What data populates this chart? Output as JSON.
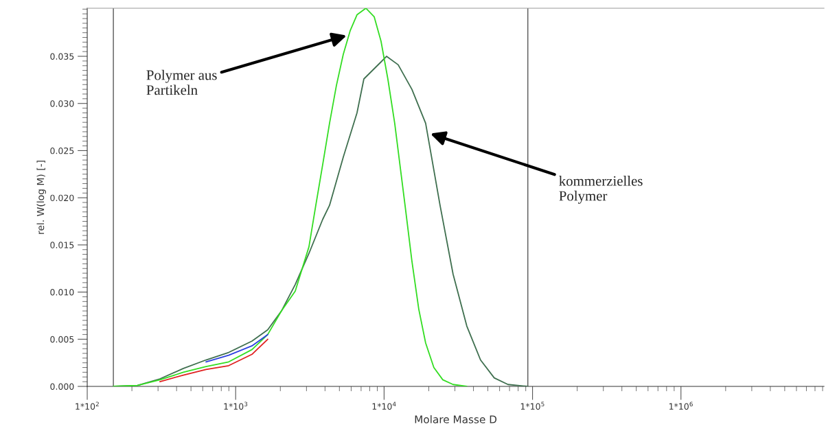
{
  "chart_data": {
    "type": "line",
    "xlabel": "Molare Masse D",
    "ylabel": "rel. W(log M) [-]",
    "log": "x",
    "grid": false,
    "legend": false,
    "marker": "none",
    "line_style": "solid",
    "xlim": [
      100,
      9200000
    ],
    "ylim": [
      0,
      0.0401
    ],
    "xticks": [
      {
        "value": 100,
        "label": "1*10$^{2}$"
      },
      {
        "value": 1000,
        "label": "1*10$^{3}$"
      },
      {
        "value": 10000,
        "label": "1*10$^{4}$"
      },
      {
        "value": 100000,
        "label": "1*10$^{5}$"
      },
      {
        "value": 1000000,
        "label": "1*10$^{6}$"
      }
    ],
    "yticks": [
      {
        "value": 0,
        "label": "0.000"
      },
      {
        "value": 0.005,
        "label": "0.005"
      },
      {
        "value": 0.01,
        "label": "0.010"
      },
      {
        "value": 0.015,
        "label": "0.015"
      },
      {
        "value": 0.02,
        "label": "0.020"
      },
      {
        "value": 0.025,
        "label": "0.025"
      },
      {
        "value": 0.03,
        "label": "0.030"
      },
      {
        "value": 0.035,
        "label": "0.035"
      }
    ],
    "ref_lines": [
      {
        "axis": "x",
        "value": 150,
        "color": "#444444"
      },
      {
        "axis": "x",
        "value": 93000,
        "color": "#444444"
      }
    ],
    "series": [
      {
        "color": "#3f6f4f",
        "x": [
          150,
          218,
          309,
          444,
          631,
          897,
          1288,
          1645,
          2035,
          2519,
          3117,
          3856,
          4290,
          5308,
          6568,
          7308,
          9533,
          10380,
          12440,
          15390,
          19050,
          23820,
          29160,
          36070,
          44640,
          55220,
          68330,
          93070
        ],
        "values": [
          0,
          0.0001,
          0.0008,
          0.0019,
          0.0028,
          0.0036,
          0.0048,
          0.006,
          0.008,
          0.0108,
          0.0141,
          0.0177,
          0.0192,
          0.0243,
          0.029,
          0.0326,
          0.0344,
          0.035,
          0.0341,
          0.0315,
          0.0279,
          0.0192,
          0.0119,
          0.0064,
          0.0028,
          0.0009,
          0.0002,
          0
        ]
      },
      {
        "color": "#33dd22",
        "x": [
          150,
          218,
          309,
          444,
          631,
          897,
          1288,
          1645,
          2035,
          2519,
          3117,
          3467,
          3856,
          4290,
          4772,
          5308,
          5904,
          6568,
          7540,
          8571,
          9533,
          10600,
          11790,
          13840,
          15390,
          17120,
          19050,
          21640,
          24860,
          29160,
          36070
        ],
        "values": [
          0,
          0.0001,
          0.0007,
          0.0015,
          0.0021,
          0.0026,
          0.0039,
          0.0055,
          0.008,
          0.0101,
          0.0148,
          0.0192,
          0.0235,
          0.0279,
          0.0319,
          0.0352,
          0.0377,
          0.0394,
          0.0401,
          0.0392,
          0.0366,
          0.0326,
          0.0279,
          0.0192,
          0.0133,
          0.0082,
          0.0046,
          0.002,
          0.0007,
          0.0002,
          0
        ]
      },
      {
        "color": "#2b3fe0",
        "x": [
          631,
          897,
          1288,
          1645
        ],
        "values": [
          0.0026,
          0.0033,
          0.0043,
          0.0055
        ]
      },
      {
        "color": "#e02020",
        "x": [
          309,
          444,
          631,
          897,
          1288,
          1645
        ],
        "values": [
          0.0005,
          0.0012,
          0.0018,
          0.0022,
          0.0034,
          0.005
        ]
      }
    ],
    "annotations": [
      {
        "text": "Polymer aus\nPartikeln",
        "x": 5600,
        "y": 0.0372
      },
      {
        "text": "kommerzielles\nPolymer",
        "x": 20500,
        "y": 0.0268
      }
    ]
  }
}
